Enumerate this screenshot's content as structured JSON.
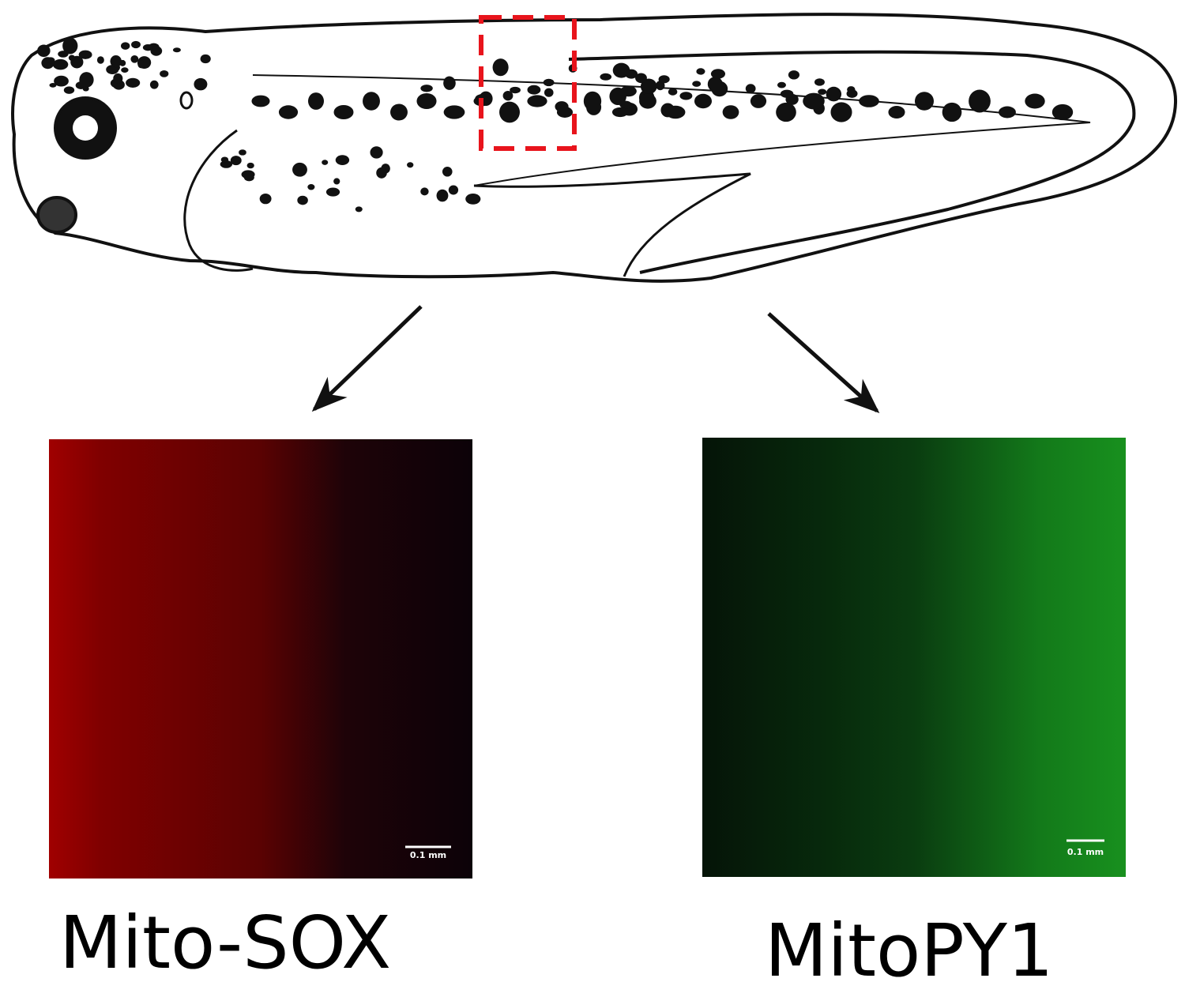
{
  "panels": [
    {
      "label": "Mito-SOX",
      "scale_bar": "0.1 mm"
    },
    {
      "label": "MitoPY1",
      "scale_bar": "0.1 mm"
    }
  ]
}
